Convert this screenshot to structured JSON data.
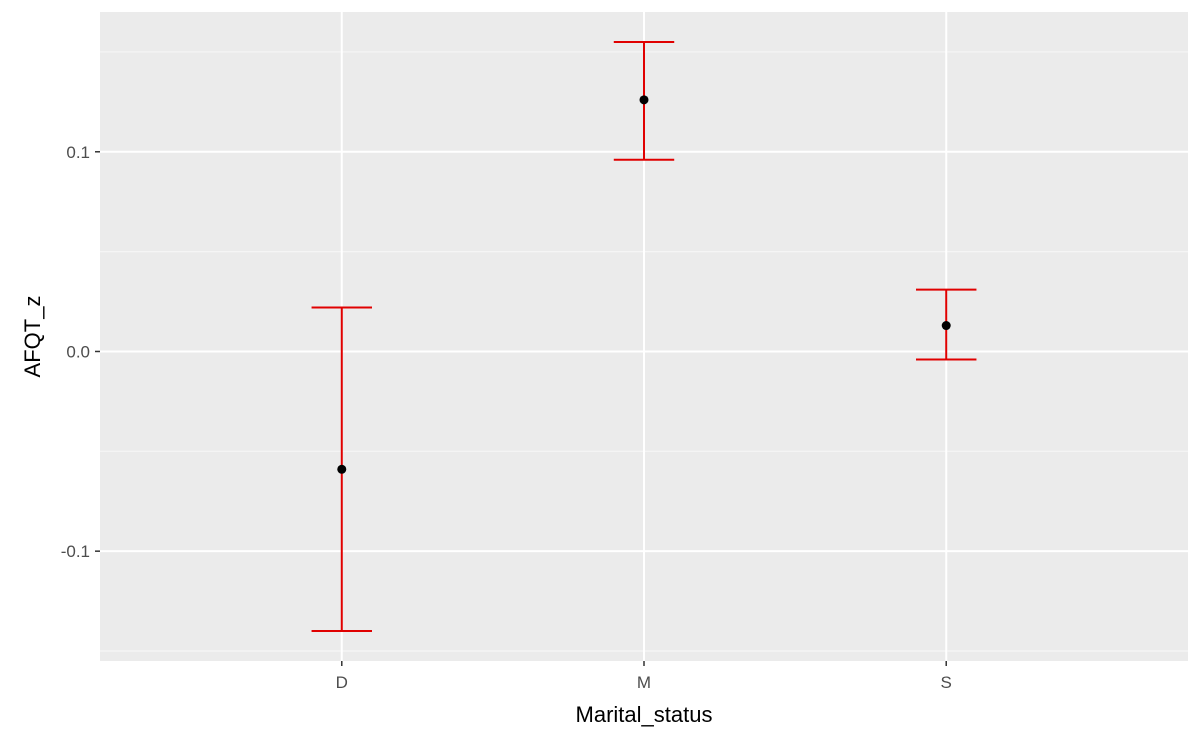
{
  "colors": {
    "panel_background": "#ebebeb",
    "grid_major": "#ffffff",
    "grid_minor": "#f5f5f5",
    "errorbar": "#e00000",
    "point": "#000000",
    "tick_text": "#4d4d4d",
    "axis_title": "#000000"
  },
  "chart_data": {
    "type": "scatter",
    "subtype": "point-with-errorbars",
    "xlabel": "Marital_status",
    "ylabel": "AFQT_z",
    "categories": [
      "D",
      "M",
      "S"
    ],
    "points": [
      {
        "x": "D",
        "y": -0.059,
        "ymin": -0.14,
        "ymax": 0.022
      },
      {
        "x": "M",
        "y": 0.126,
        "ymin": 0.096,
        "ymax": 0.155
      },
      {
        "x": "S",
        "y": 0.013,
        "ymin": -0.004,
        "ymax": 0.031
      }
    ],
    "ylim": [
      -0.155,
      0.17
    ],
    "y_ticks": [
      -0.1,
      0.0,
      0.1
    ],
    "y_tick_labels": [
      "-0.1",
      "0.0",
      "0.1"
    ],
    "y_minor_ticks": [
      -0.15,
      -0.05,
      0.05,
      0.15
    ],
    "grid": true,
    "legend": "none"
  }
}
